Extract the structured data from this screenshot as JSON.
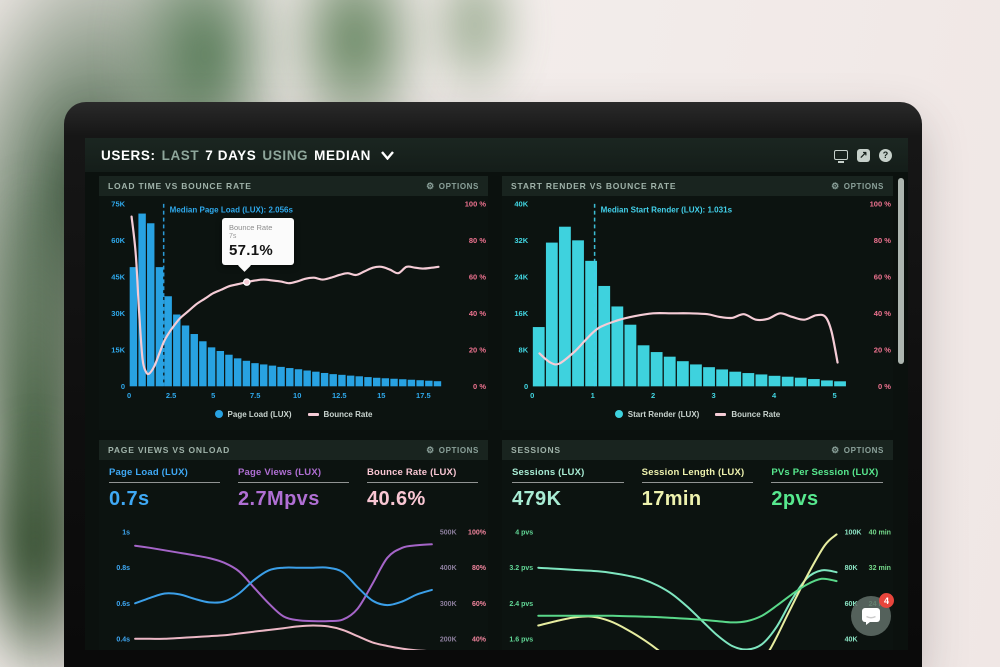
{
  "header": {
    "label_users": "USERS:",
    "label_last": "LAST",
    "label_days": "7 DAYS",
    "label_using": "USING",
    "label_median": "MEDIAN"
  },
  "toolbar": {
    "help_glyph": "?",
    "share_glyph": "↗"
  },
  "chat": {
    "badge": "4"
  },
  "panels": {
    "load_time": {
      "title": "LOAD TIME VS BOUNCE RATE",
      "options": "OPTIONS",
      "gear": "⚙",
      "tooltip": {
        "title": "Bounce Rate",
        "sub": "7s",
        "value": "57.1%"
      },
      "legend": [
        {
          "label": "Page Load (LUX)"
        },
        {
          "label": "Bounce Rate"
        }
      ]
    },
    "start_render": {
      "title": "START RENDER VS BOUNCE RATE",
      "options": "OPTIONS",
      "gear": "⚙",
      "legend": [
        {
          "label": "Start Render (LUX)"
        },
        {
          "label": "Bounce Rate"
        }
      ]
    },
    "page_views": {
      "title": "PAGE VIEWS VS ONLOAD",
      "options": "OPTIONS",
      "gear": "⚙",
      "metrics": [
        {
          "label": "Page Load (LUX)",
          "value": "0.7s",
          "color": "#3fa9f5"
        },
        {
          "label": "Page Views (LUX)",
          "value": "2.7Mpvs",
          "color": "#b06fd4"
        },
        {
          "label": "Bounce Rate (LUX)",
          "value": "40.6%",
          "color": "#f9c6d3"
        }
      ]
    },
    "sessions": {
      "title": "SESSIONS",
      "options": "OPTIONS",
      "gear": "⚙",
      "metrics": [
        {
          "label": "Sessions (LUX)",
          "value": "479K",
          "color": "#a8ecd4"
        },
        {
          "label": "Session Length (LUX)",
          "value": "17min",
          "color": "#eef2ae"
        },
        {
          "label": "PVs Per Session (LUX)",
          "value": "2pvs",
          "color": "#57e88e"
        }
      ]
    }
  },
  "chart_data": [
    {
      "id": "load_time_vs_bounce",
      "type": "bar",
      "title": "LOAD TIME VS BOUNCE RATE",
      "xlim": [
        0,
        18.6
      ],
      "x_ticks": [
        0,
        2.5,
        5,
        7.5,
        10,
        12.5,
        15,
        17.5
      ],
      "x_unit": "s",
      "y_left": {
        "max": 75,
        "unit": "K",
        "ticks": [
          "75K",
          "60K",
          "45K",
          "30K",
          "15K",
          "0"
        ],
        "color": "#2fa9ec"
      },
      "y_right": {
        "max": 100,
        "ticks": [
          "100 %",
          "80 %",
          "60 %",
          "40 %",
          "20 %",
          "0 %"
        ],
        "color": "#ef7390"
      },
      "bars": {
        "name": "Page Load (LUX)",
        "color": "#28a2e2",
        "values": [
          49,
          71,
          67,
          49,
          37,
          29.5,
          25,
          21.5,
          18.5,
          16,
          14.5,
          13,
          11.5,
          10.5,
          9.5,
          9,
          8.5,
          8,
          7.5,
          7,
          6.5,
          6,
          5.5,
          5,
          4.7,
          4.4,
          4.1,
          3.8,
          3.5,
          3.3,
          3.1,
          2.9,
          2.7,
          2.5,
          2.3,
          2.1
        ]
      },
      "line": {
        "name": "Bounce Rate",
        "color": "#f5ccd6",
        "points": [
          [
            0.15,
            93
          ],
          [
            0.4,
            72
          ],
          [
            0.6,
            40
          ],
          [
            0.8,
            15
          ],
          [
            1.0,
            8
          ],
          [
            1.2,
            7
          ],
          [
            1.5,
            11
          ],
          [
            1.8,
            18
          ],
          [
            2.1,
            25
          ],
          [
            2.5,
            31
          ],
          [
            3,
            37
          ],
          [
            3.5,
            41
          ],
          [
            4,
            45
          ],
          [
            4.5,
            48
          ],
          [
            5,
            51
          ],
          [
            5.5,
            53
          ],
          [
            6,
            55
          ],
          [
            6.5,
            56
          ],
          [
            7,
            57.1
          ],
          [
            7.5,
            58
          ],
          [
            8,
            58.5
          ],
          [
            8.5,
            58
          ],
          [
            9,
            57.5
          ],
          [
            9.5,
            56.5
          ],
          [
            10,
            57.5
          ],
          [
            10.5,
            59
          ],
          [
            11,
            59.5
          ],
          [
            11.5,
            58.5
          ],
          [
            12,
            59.5
          ],
          [
            12.5,
            61
          ],
          [
            13,
            62
          ],
          [
            13.5,
            61
          ],
          [
            14,
            63
          ],
          [
            14.5,
            65
          ],
          [
            15,
            65.5
          ],
          [
            15.5,
            64
          ],
          [
            16,
            62
          ],
          [
            16.5,
            65.5
          ],
          [
            17,
            65
          ],
          [
            17.5,
            64.5
          ],
          [
            18,
            65
          ],
          [
            18.4,
            65.5
          ]
        ]
      },
      "marker": {
        "x": 7,
        "pct": 57.1
      },
      "median": {
        "x": 2.056,
        "label": "Median Page Load (LUX): 2.056s",
        "color": "#2fa9ec"
      }
    },
    {
      "id": "start_render_vs_bounce",
      "type": "bar",
      "title": "START RENDER VS BOUNCE RATE",
      "xlim": [
        0,
        5.2
      ],
      "x_ticks": [
        0,
        1,
        2,
        3,
        4,
        5
      ],
      "x_unit": "s",
      "y_left": {
        "max": 40,
        "unit": "K",
        "ticks": [
          "40K",
          "32K",
          "24K",
          "16K",
          "8K",
          "0"
        ],
        "color": "#42d6e2"
      },
      "y_right": {
        "max": 100,
        "ticks": [
          "100 %",
          "80 %",
          "60 %",
          "40 %",
          "20 %",
          "0 %"
        ],
        "color": "#ef7390"
      },
      "bars": {
        "name": "Start Render (LUX)",
        "color": "#3ed2de",
        "values": [
          13,
          31.5,
          35,
          32,
          27.5,
          22,
          17.5,
          13.5,
          9,
          7.5,
          6.5,
          5.5,
          4.8,
          4.2,
          3.7,
          3.2,
          2.9,
          2.6,
          2.3,
          2.1,
          1.9,
          1.6,
          1.3,
          1.1
        ]
      },
      "line": {
        "name": "Bounce Rate",
        "color": "#f5ccd6",
        "points": [
          [
            0.12,
            18
          ],
          [
            0.3,
            13
          ],
          [
            0.45,
            12.5
          ],
          [
            0.7,
            19
          ],
          [
            0.9,
            26
          ],
          [
            1.1,
            32
          ],
          [
            1.4,
            36
          ],
          [
            1.7,
            38.5
          ],
          [
            2.0,
            40
          ],
          [
            2.3,
            40
          ],
          [
            2.6,
            40
          ],
          [
            2.9,
            39.5
          ],
          [
            3.1,
            38
          ],
          [
            3.3,
            37.5
          ],
          [
            3.5,
            39.5
          ],
          [
            3.7,
            36.5
          ],
          [
            3.9,
            37
          ],
          [
            4.1,
            40
          ],
          [
            4.3,
            38
          ],
          [
            4.5,
            36.5
          ],
          [
            4.7,
            39
          ],
          [
            4.85,
            38
          ],
          [
            4.95,
            30
          ],
          [
            5.05,
            13
          ]
        ]
      },
      "median": {
        "x": 1.031,
        "label": "Median Start Render (LUX): 1.031s",
        "color": "#42d0ea"
      }
    },
    {
      "id": "page_views_vs_onload",
      "type": "line",
      "title": "PAGE VIEWS VS ONLOAD",
      "left_ticks": [
        "1s",
        "0.8s",
        "0.6s",
        "0.4s"
      ],
      "left_color": "#3fa9f5",
      "right_ticks": [
        [
          "500K",
          "100%"
        ],
        [
          "400K",
          "80%"
        ],
        [
          "300K",
          "60%"
        ],
        [
          "200K",
          "40%"
        ]
      ],
      "right_color1": "#8d7f9e",
      "right_color2": "#f2859e",
      "series": [
        {
          "name": "Page Views (LUX)",
          "color": "#a565c8",
          "unit": "K",
          "axis_top": 500,
          "axis_bottom": 200,
          "x": [
            0,
            5,
            10,
            15,
            20,
            25,
            30,
            35,
            40,
            45,
            50,
            55,
            60,
            65,
            70,
            75,
            80,
            85,
            90,
            95,
            100
          ],
          "values": [
            462,
            456,
            449,
            442,
            435,
            427,
            414,
            390,
            345,
            300,
            263,
            252,
            250,
            250,
            254,
            285,
            355,
            428,
            456,
            463,
            466
          ]
        },
        {
          "name": "Page Load (LUX)",
          "color": "#3b9fe8",
          "unit": "s",
          "axis_top": 1.0,
          "axis_bottom": 0.4,
          "x": [
            0,
            5,
            10,
            15,
            20,
            25,
            30,
            35,
            40,
            45,
            50,
            55,
            60,
            65,
            70,
            75,
            80,
            85,
            90,
            95,
            100
          ],
          "values": [
            0.6,
            0.63,
            0.655,
            0.65,
            0.625,
            0.605,
            0.61,
            0.655,
            0.73,
            0.785,
            0.8,
            0.8,
            0.8,
            0.8,
            0.775,
            0.69,
            0.615,
            0.59,
            0.61,
            0.65,
            0.675
          ]
        },
        {
          "name": "Bounce Rate (LUX)",
          "color": "#edb8c6",
          "unit": "%",
          "axis_top": 100,
          "axis_bottom": 40,
          "x": [
            0,
            5,
            10,
            15,
            20,
            25,
            30,
            35,
            40,
            45,
            50,
            55,
            60,
            65,
            70,
            75,
            80,
            85,
            90,
            95,
            100
          ],
          "values": [
            40,
            40,
            40,
            40.5,
            41,
            41.5,
            42,
            43,
            44,
            45,
            46,
            47,
            47.5,
            47,
            45,
            41.5,
            38,
            36,
            34.5,
            33.5,
            33
          ]
        }
      ]
    },
    {
      "id": "sessions",
      "type": "line",
      "title": "SESSIONS",
      "left_ticks": [
        "4 pvs",
        "3.2 pvs",
        "2.4 pvs",
        "1.6 pvs"
      ],
      "left_color": "#62d796",
      "right_ticks": [
        [
          "100K",
          "40 min"
        ],
        [
          "80K",
          "32 min"
        ],
        [
          "60K",
          "24 min"
        ],
        [
          "40K",
          ""
        ]
      ],
      "right_color1": "#8ce4c4",
      "right_color2": "#74d88a",
      "series": [
        {
          "name": "Sessions (LUX)",
          "color": "#7fe6c0",
          "unit": "K",
          "axis_top": 100,
          "axis_bottom": 40,
          "x": [
            0,
            5,
            10,
            15,
            20,
            25,
            30,
            35,
            40,
            45,
            50,
            55,
            60,
            65,
            70,
            75,
            80,
            85,
            90,
            95,
            100
          ],
          "values": [
            80,
            79.5,
            79,
            78.5,
            78,
            77,
            75.5,
            73.5,
            70,
            65,
            58,
            50,
            42,
            36,
            34,
            37,
            47,
            62,
            74,
            78.5,
            77.5
          ]
        },
        {
          "name": "Session Length (LUX)",
          "color": "#e7eda0",
          "unit": "min",
          "axis_top": 40,
          "axis_bottom": 16,
          "x": [
            0,
            6,
            12,
            18,
            24,
            30,
            36,
            42,
            48,
            54,
            60,
            66,
            72,
            78,
            84,
            90,
            96,
            100
          ],
          "values": [
            19,
            20,
            20.8,
            21,
            20,
            18,
            15.5,
            12.5,
            9,
            6,
            4.5,
            5,
            8,
            14,
            22,
            30,
            37,
            39.5
          ]
        },
        {
          "name": "PVs Per Session (LUX)",
          "color": "#59d889",
          "unit": "pvs",
          "axis_top": 4,
          "axis_bottom": 1.6,
          "x": [
            0,
            5,
            10,
            15,
            20,
            25,
            30,
            35,
            40,
            45,
            50,
            55,
            60,
            65,
            70,
            75,
            80,
            85,
            90,
            95,
            100
          ],
          "values": [
            2.12,
            2.12,
            2.12,
            2.12,
            2.12,
            2.12,
            2.11,
            2.1,
            2.09,
            2.07,
            2.05,
            2.03,
            2.0,
            1.97,
            2.0,
            2.12,
            2.35,
            2.6,
            2.82,
            2.95,
            2.9
          ]
        }
      ]
    }
  ]
}
